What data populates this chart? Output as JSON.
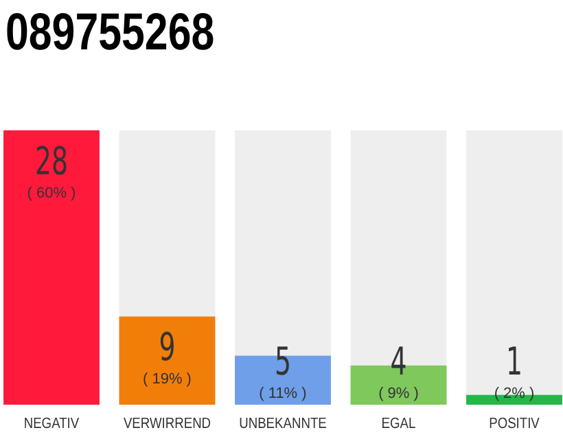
{
  "chart_data": {
    "type": "bar",
    "title": "089755268",
    "categories": [
      "NEGATIV",
      "VERWIRREND",
      "UNBEKANNTE",
      "EGAL",
      "POSITIV"
    ],
    "values": [
      28,
      9,
      5,
      4,
      1
    ],
    "colors": [
      "#ff1a3c",
      "#f27e0a",
      "#6f9fe8",
      "#7ec85c",
      "#22b845"
    ],
    "data_labels": true,
    "annotations": [
      "( 60% )",
      "( 19% )",
      "( 11% )",
      "( 9% )",
      "( 2% )"
    ],
    "tick_labels": "x"
  }
}
